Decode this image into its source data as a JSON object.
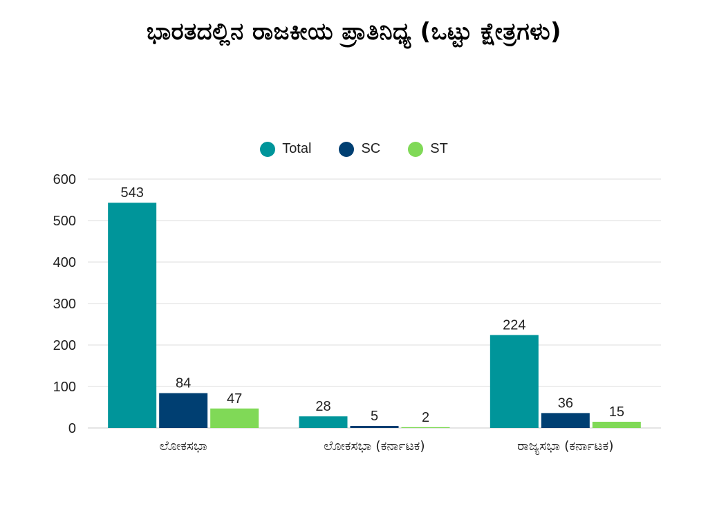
{
  "chart_data": {
    "type": "bar",
    "title": "ಭಾರತದಲ್ಲಿನ ರಾಜಕೀಯ ಪ್ರಾತಿನಿಧ್ಯ (ಒಟ್ಟು ಕ್ಷೇತ್ರಗಳು)",
    "categories": [
      "ಲೋಕಸಭಾ",
      "ಲೋಕಸಭಾ (ಕರ್ನಾಟಕ)",
      "ರಾಜ್ಯಸಭಾ (ಕರ್ನಾಟಕ)"
    ],
    "series": [
      {
        "name": "Total",
        "values": [
          543,
          28,
          224
        ],
        "color": "#00959a"
      },
      {
        "name": "SC",
        "values": [
          84,
          5,
          36
        ],
        "color": "#003f72"
      },
      {
        "name": "ST",
        "values": [
          47,
          2,
          15
        ],
        "color": "#80d957"
      }
    ],
    "ylim": [
      0,
      600
    ],
    "yticks": [
      0,
      100,
      200,
      300,
      400,
      500,
      600
    ],
    "grid": true,
    "legend_position": "top-center",
    "data_labels": true
  }
}
